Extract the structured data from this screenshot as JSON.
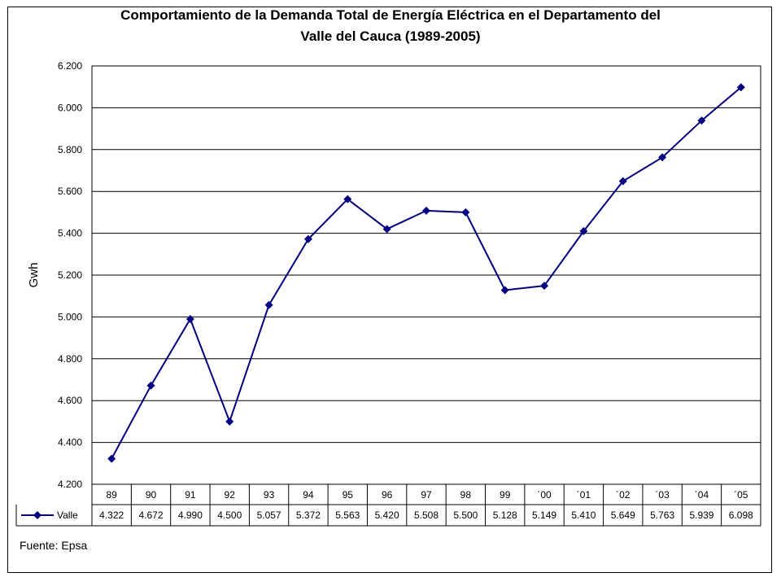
{
  "title_line1": "Comportamiento de la Demanda Total de Energía Eléctrica en el Departamento del",
  "title_line2": "Valle del Cauca (1989-2005)",
  "source": "Fuente: Epsa",
  "colors": {
    "series": "#000080",
    "grid": "#000000"
  },
  "chart_data": {
    "type": "line",
    "ylabel": "Gwh",
    "ylim": [
      4200,
      6200
    ],
    "yticks": [
      4200,
      4400,
      4600,
      4800,
      5000,
      5200,
      5400,
      5600,
      5800,
      6000,
      6200
    ],
    "ytick_labels": [
      "4.200",
      "4.400",
      "4.600",
      "4.800",
      "5.000",
      "5.200",
      "5.400",
      "5.600",
      "5.800",
      "6.000",
      "6.200"
    ],
    "grid": true,
    "marker": "diamond",
    "categories": [
      "89",
      "90",
      "91",
      "92",
      "93",
      "94",
      "95",
      "96",
      "97",
      "98",
      "99",
      "´00",
      "´01",
      "´02",
      "´03",
      "´04",
      "´05"
    ],
    "series": [
      {
        "name": "Valle",
        "values": [
          4322,
          4672,
          4990,
          4500,
          5057,
          5372,
          5563,
          5420,
          5508,
          5500,
          5128,
          5149,
          5410,
          5649,
          5763,
          5939,
          6098
        ],
        "value_labels": [
          "4.322",
          "4.672",
          "4.990",
          "4.500",
          "5.057",
          "5.372",
          "5.563",
          "5.420",
          "5.508",
          "5.500",
          "5.128",
          "5.149",
          "5.410",
          "5.649",
          "5.763",
          "5.939",
          "6.098"
        ]
      }
    ]
  }
}
